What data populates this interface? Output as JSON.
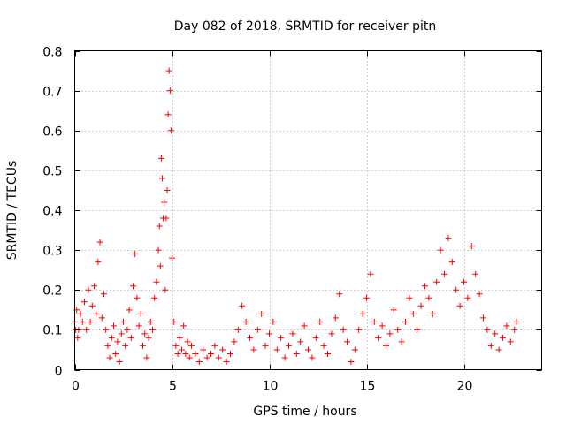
{
  "chart_data": {
    "type": "scatter",
    "title": "Day 082 of 2018, SRMTID for receiver pitn",
    "xlabel": "GPS time / hours",
    "ylabel": "SRMTID / TECUs",
    "xlim": [
      0,
      24
    ],
    "ylim": [
      0,
      0.8
    ],
    "x_ticks": [
      0,
      5,
      10,
      15,
      20
    ],
    "y_ticks": [
      0,
      0.1,
      0.2,
      0.3,
      0.4,
      0.5,
      0.6,
      0.7,
      0.8
    ],
    "x_tick_labels": [
      "0",
      "5",
      "10",
      "15",
      "20"
    ],
    "y_tick_labels": [
      "0",
      "0.1",
      "0.2",
      "0.3",
      "0.4",
      "0.5",
      "0.6",
      "0.7",
      "0.8"
    ],
    "grid": true,
    "marker": "+",
    "color": "#ff0000",
    "series": [
      {
        "name": "SRMTID",
        "x": [
          0.0,
          0.05,
          0.1,
          0.15,
          0.2,
          0.3,
          0.4,
          0.5,
          0.6,
          0.7,
          0.8,
          0.9,
          1.0,
          1.1,
          1.2,
          1.3,
          1.4,
          1.5,
          1.6,
          1.7,
          1.8,
          1.9,
          2.0,
          2.1,
          2.2,
          2.3,
          2.4,
          2.5,
          2.6,
          2.7,
          2.8,
          2.9,
          3.0,
          3.1,
          3.2,
          3.3,
          3.4,
          3.5,
          3.6,
          3.7,
          3.8,
          3.9,
          4.0,
          4.1,
          4.2,
          4.3,
          4.35,
          4.4,
          4.45,
          4.5,
          4.55,
          4.6,
          4.65,
          4.7,
          4.75,
          4.8,
          4.85,
          4.9,
          4.95,
          5.0,
          5.1,
          5.2,
          5.3,
          5.4,
          5.5,
          5.6,
          5.7,
          5.8,
          5.9,
          6.0,
          6.2,
          6.4,
          6.6,
          6.8,
          7.0,
          7.2,
          7.4,
          7.6,
          7.8,
          8.0,
          8.2,
          8.4,
          8.6,
          8.8,
          9.0,
          9.2,
          9.4,
          9.6,
          9.8,
          10.0,
          10.2,
          10.4,
          10.6,
          10.8,
          11.0,
          11.2,
          11.4,
          11.6,
          11.8,
          12.0,
          12.2,
          12.4,
          12.6,
          12.8,
          13.0,
          13.2,
          13.4,
          13.6,
          13.8,
          14.0,
          14.2,
          14.4,
          14.6,
          14.8,
          15.0,
          15.2,
          15.4,
          15.6,
          15.8,
          16.0,
          16.2,
          16.4,
          16.6,
          16.8,
          17.0,
          17.2,
          17.4,
          17.6,
          17.8,
          18.0,
          18.2,
          18.4,
          18.6,
          18.8,
          19.0,
          19.2,
          19.4,
          19.6,
          19.8,
          20.0,
          20.2,
          20.4,
          20.6,
          20.8,
          21.0,
          21.2,
          21.4,
          21.6,
          21.8,
          22.0,
          22.2,
          22.4,
          22.6,
          22.7
        ],
        "y": [
          0.12,
          0.1,
          0.15,
          0.08,
          0.1,
          0.14,
          0.12,
          0.17,
          0.1,
          0.2,
          0.12,
          0.16,
          0.21,
          0.14,
          0.27,
          0.32,
          0.13,
          0.19,
          0.1,
          0.06,
          0.03,
          0.08,
          0.11,
          0.04,
          0.07,
          0.02,
          0.09,
          0.12,
          0.06,
          0.1,
          0.15,
          0.08,
          0.21,
          0.29,
          0.18,
          0.11,
          0.14,
          0.06,
          0.09,
          0.03,
          0.08,
          0.12,
          0.1,
          0.18,
          0.22,
          0.3,
          0.36,
          0.26,
          0.53,
          0.48,
          0.38,
          0.42,
          0.2,
          0.38,
          0.45,
          0.64,
          0.75,
          0.7,
          0.6,
          0.28,
          0.12,
          0.06,
          0.04,
          0.08,
          0.05,
          0.11,
          0.04,
          0.07,
          0.03,
          0.06,
          0.04,
          0.02,
          0.05,
          0.03,
          0.04,
          0.06,
          0.03,
          0.05,
          0.02,
          0.04,
          0.07,
          0.1,
          0.16,
          0.12,
          0.08,
          0.05,
          0.1,
          0.14,
          0.06,
          0.09,
          0.12,
          0.05,
          0.08,
          0.03,
          0.06,
          0.09,
          0.04,
          0.07,
          0.11,
          0.05,
          0.03,
          0.08,
          0.12,
          0.06,
          0.04,
          0.09,
          0.13,
          0.19,
          0.1,
          0.07,
          0.02,
          0.05,
          0.1,
          0.14,
          0.18,
          0.24,
          0.12,
          0.08,
          0.11,
          0.06,
          0.09,
          0.15,
          0.1,
          0.07,
          0.12,
          0.18,
          0.14,
          0.1,
          0.16,
          0.21,
          0.18,
          0.14,
          0.22,
          0.3,
          0.24,
          0.33,
          0.27,
          0.2,
          0.16,
          0.22,
          0.18,
          0.31,
          0.24,
          0.19,
          0.13,
          0.1,
          0.06,
          0.09,
          0.05,
          0.08,
          0.11,
          0.07,
          0.1,
          0.12
        ]
      }
    ]
  }
}
